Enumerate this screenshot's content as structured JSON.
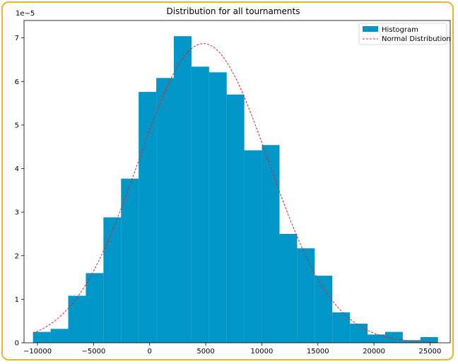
{
  "chart_data": {
    "type": "bar",
    "title": "Distribution for all tournaments",
    "xlabel": "",
    "ylabel": "",
    "y_offset_label": "1e−5",
    "xlim": [
      -11200,
      26800
    ],
    "ylim": [
      0,
      7.4
    ],
    "xticks": [
      -10000,
      -5000,
      0,
      5000,
      10000,
      15000,
      20000,
      25000
    ],
    "xtick_labels": [
      "−10000",
      "−5000",
      "0",
      "5000",
      "10000",
      "15000",
      "20000",
      "25000"
    ],
    "yticks": [
      0,
      1,
      2,
      3,
      4,
      5,
      6,
      7
    ],
    "ytick_labels": [
      "0",
      "1",
      "2",
      "3",
      "4",
      "5",
      "6",
      "7"
    ],
    "bin_edges": [
      -10400,
      -8830,
      -7260,
      -5690,
      -4120,
      -2550,
      -980,
      590,
      2160,
      3730,
      5300,
      6870,
      8440,
      10010,
      11580,
      13150,
      14720,
      16290,
      17860,
      19430,
      21000,
      22570,
      24140,
      25710
    ],
    "series": [
      {
        "name": "Histogram",
        "kind": "histogram",
        "color": "#0096c7",
        "values": [
          0.25,
          0.32,
          1.08,
          1.6,
          2.88,
          3.77,
          5.76,
          6.08,
          7.04,
          6.34,
          6.21,
          5.7,
          4.42,
          4.54,
          2.5,
          2.17,
          1.54,
          0.7,
          0.44,
          0.19,
          0.25,
          0.06,
          0.13
        ]
      },
      {
        "name": "Normal Distribution",
        "kind": "line",
        "style": "dashed",
        "color": "#e8231a",
        "mean": 4800,
        "std": 5800,
        "peak": 6.87,
        "x_range": [
          -10400,
          25710
        ]
      }
    ],
    "legend": {
      "position": "top-right",
      "entries": [
        "Histogram",
        "Normal Distribution"
      ]
    },
    "grid": false
  }
}
